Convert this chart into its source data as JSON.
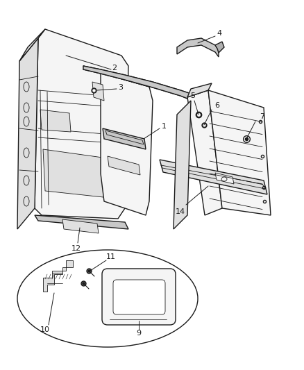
{
  "background_color": "#ffffff",
  "line_color": "#1a1a1a",
  "label_color": "#1a1a1a",
  "figsize": [
    4.38,
    5.33
  ],
  "dpi": 100,
  "label_size": 8,
  "lw_main": 1.0,
  "lw_thin": 0.6,
  "lw_thick": 1.4,
  "fill_light": "#f5f5f5",
  "fill_mid": "#e0e0e0",
  "fill_dark": "#c8c8c8",
  "fill_darker": "#b0b0b0"
}
